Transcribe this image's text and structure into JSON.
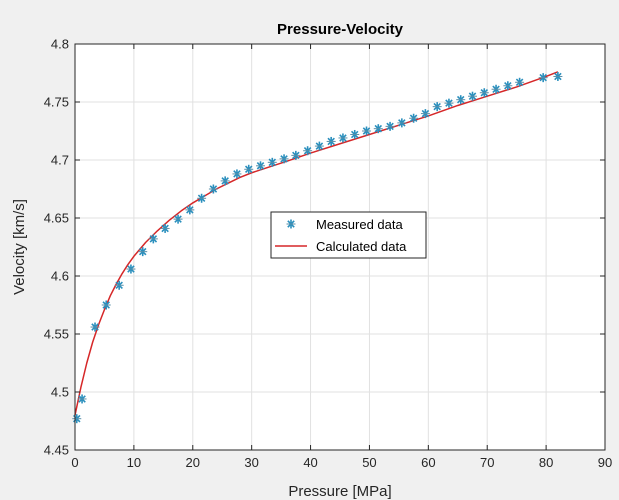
{
  "chart_data": {
    "type": "scatter",
    "title": "Pressure-Velocity",
    "xlabel": "Pressure [MPa]",
    "ylabel": "Velocity [km/s]",
    "xlim": [
      0,
      90
    ],
    "ylim": [
      4.45,
      4.8
    ],
    "x_ticks": [
      "0",
      "10",
      "20",
      "30",
      "40",
      "50",
      "60",
      "70",
      "80",
      "90"
    ],
    "y_ticks": [
      "4.45",
      "4.5",
      "4.55",
      "4.6",
      "4.65",
      "4.7",
      "4.75",
      "4.8"
    ],
    "grid": true,
    "legend_position": "center",
    "series": [
      {
        "name": "Measured data",
        "marker": "asterisk",
        "color": "#2a8fbd",
        "x": [
          0.3,
          1.2,
          3.4,
          5.3,
          7.5,
          9.5,
          11.5,
          13.3,
          15.3,
          17.5,
          19.5,
          21.5,
          23.5,
          25.5,
          27.5,
          29.5,
          31.5,
          33.5,
          35.5,
          37.5,
          39.5,
          41.5,
          43.5,
          45.5,
          47.5,
          49.5,
          51.5,
          53.5,
          55.5,
          57.5,
          59.5,
          61.5,
          63.5,
          65.5,
          67.5,
          69.5,
          71.5,
          73.5,
          75.5,
          79.5,
          82.0
        ],
        "y": [
          4.477,
          4.494,
          4.556,
          4.575,
          4.592,
          4.606,
          4.621,
          4.632,
          4.641,
          4.649,
          4.657,
          4.667,
          4.675,
          4.682,
          4.688,
          4.692,
          4.695,
          4.698,
          4.701,
          4.704,
          4.708,
          4.712,
          4.716,
          4.719,
          4.722,
          4.725,
          4.727,
          4.729,
          4.732,
          4.736,
          4.74,
          4.746,
          4.749,
          4.752,
          4.755,
          4.758,
          4.761,
          4.764,
          4.767,
          4.771,
          4.772
        ]
      },
      {
        "name": "Calculated data",
        "color": "#d62728",
        "x": [
          0,
          1,
          2,
          3,
          4,
          5,
          6,
          7,
          8,
          9,
          10,
          12,
          14,
          16,
          18,
          20,
          22,
          24,
          26,
          28,
          30,
          33,
          36,
          40,
          45,
          50,
          55,
          60,
          65,
          70,
          75,
          80,
          82
        ],
        "y": [
          4.48,
          4.504,
          4.525,
          4.543,
          4.558,
          4.571,
          4.583,
          4.593,
          4.602,
          4.61,
          4.617,
          4.629,
          4.639,
          4.648,
          4.656,
          4.663,
          4.669,
          4.675,
          4.68,
          4.685,
          4.689,
          4.694,
          4.699,
          4.706,
          4.714,
          4.722,
          4.73,
          4.738,
          4.747,
          4.755,
          4.763,
          4.772,
          4.776
        ]
      }
    ]
  }
}
